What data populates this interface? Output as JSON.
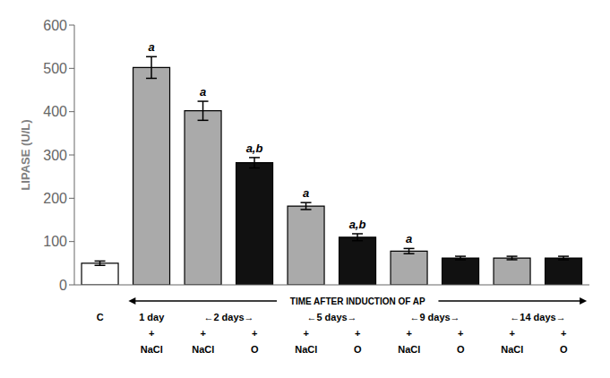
{
  "chart_data": {
    "type": "bar",
    "ylabel": "LIPASE (U/L)",
    "categories": [
      null,
      "NaCl",
      "NaCl",
      "O",
      "NaCl",
      "O",
      "NaCl",
      "O",
      "NaCl",
      "O"
    ],
    "plus_labels": [
      null,
      "+",
      "+",
      "+",
      "+",
      "+",
      "+",
      "+",
      "+",
      "+"
    ],
    "groups": [
      {
        "label": "C",
        "size": 1
      },
      {
        "label": "1 day",
        "size": 1
      },
      {
        "label": "←2 days→",
        "size": 2
      },
      {
        "label": "←5 days→",
        "size": 2
      },
      {
        "label": "←9 days→",
        "size": 2
      },
      {
        "label": "←14 days→",
        "size": 2
      }
    ],
    "arrow_label": "TIME AFTER INDUCTION OF AP",
    "values": [
      50,
      502,
      402,
      282,
      182,
      110,
      78,
      62,
      62,
      62
    ],
    "errors": [
      5,
      25,
      22,
      12,
      8,
      8,
      6,
      4,
      4,
      4
    ],
    "colors": [
      "#ffffff",
      "#aaaaaa",
      "#aaaaaa",
      "#111111",
      "#aaaaaa",
      "#111111",
      "#aaaaaa",
      "#111111",
      "#aaaaaa",
      "#111111"
    ],
    "annotations": [
      null,
      "a",
      "a",
      "a,b",
      "a",
      "a,b",
      "a",
      null,
      null,
      null
    ],
    "ylim": [
      0,
      600
    ],
    "yticks": [
      0,
      100,
      200,
      300,
      400,
      500,
      600
    ],
    "grid": false
  }
}
